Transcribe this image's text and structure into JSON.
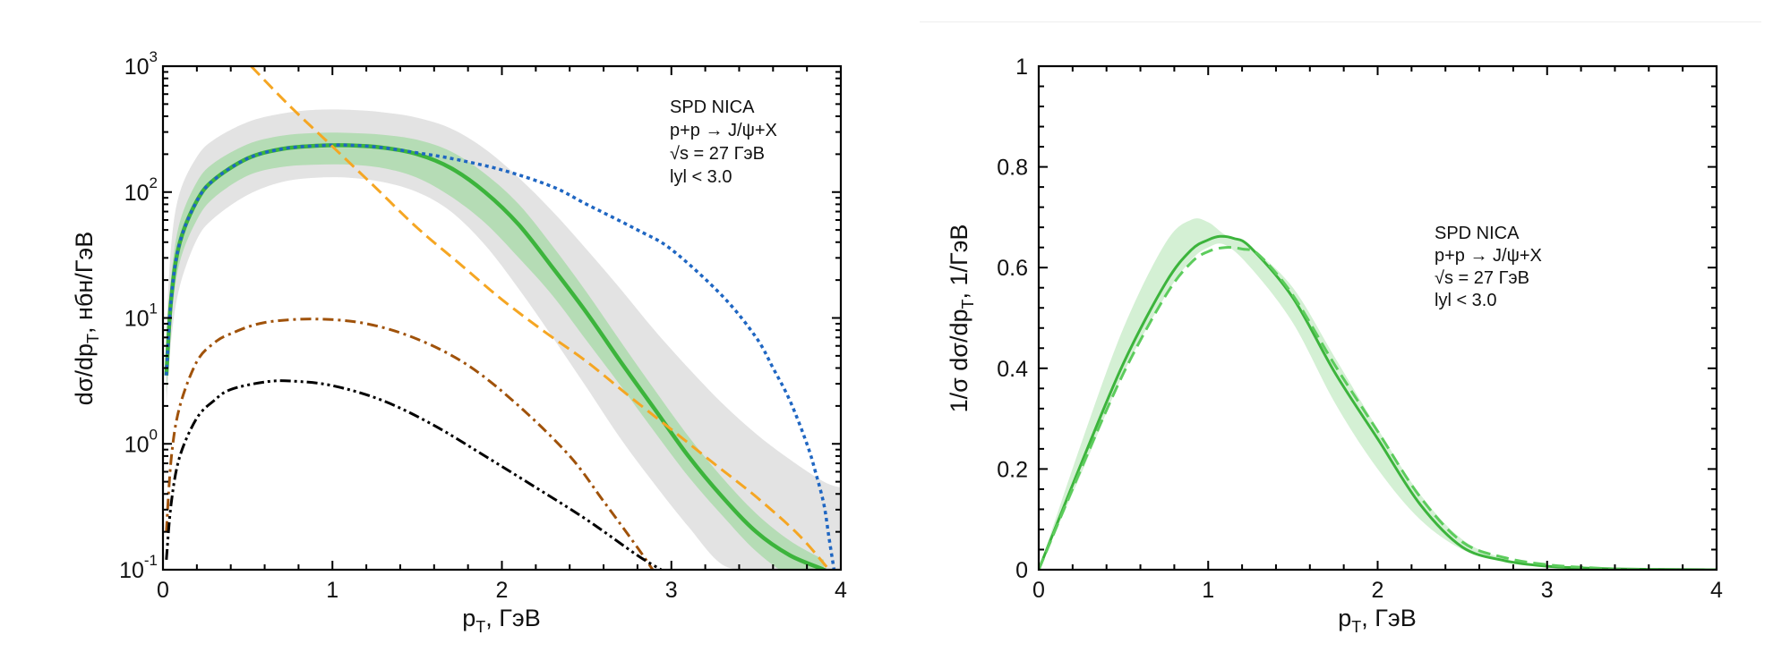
{
  "chart_data": [
    {
      "type": "line",
      "id": "left",
      "title": "",
      "xlabel": "p_T, ГэВ",
      "xlabel_main": "p",
      "xlabel_sub": "T",
      "xlabel_rest": ", ГэВ",
      "ylabel_main": "dσ/dp",
      "ylabel_sub": "T",
      "ylabel_rest": ", нбн/ГэВ",
      "yscale": "log",
      "xlim": [
        0,
        4
      ],
      "ylim": [
        0.1,
        1000
      ],
      "x_ticks": [
        0,
        1,
        2,
        3,
        4
      ],
      "x_tick_labels": [
        "0",
        "1",
        "2",
        "3",
        "4"
      ],
      "y_ticks": [
        {
          "value": 1000,
          "base": "10",
          "exp": "3"
        },
        {
          "value": 100,
          "base": "10",
          "exp": "2"
        },
        {
          "value": 10,
          "base": "10",
          "exp": "1"
        },
        {
          "value": 1,
          "base": "10",
          "exp": "0"
        },
        {
          "value": 0.1,
          "base": "10",
          "exp": "-1"
        }
      ],
      "grid": false,
      "annotation": [
        "SPD NICA",
        "p+p → J/ψ+X",
        "√s = 27 ГэВ",
        "lyl < 3.0"
      ],
      "annotation_position": "top-right",
      "bands": [
        {
          "name": "total-uncertainty-grey",
          "color": "#e3e3e3",
          "x": [
            0.02,
            0.05,
            0.1,
            0.2,
            0.3,
            0.5,
            0.7,
            0.9,
            1.1,
            1.3,
            1.5,
            1.7,
            1.9,
            2.1,
            2.3,
            2.5,
            2.7,
            2.9,
            3.1,
            3.3,
            3.5,
            3.7,
            3.9,
            4.0
          ],
          "upper": [
            8,
            40,
            100,
            190,
            260,
            360,
            420,
            450,
            450,
            430,
            390,
            320,
            220,
            130,
            70,
            35,
            17,
            8,
            4,
            2.1,
            1.2,
            0.75,
            0.5,
            0.45
          ],
          "lower": [
            2,
            7,
            18,
            42,
            62,
            95,
            120,
            130,
            130,
            120,
            100,
            70,
            38,
            17,
            7,
            2.8,
            1.1,
            0.48,
            0.22,
            0.11,
            0.1,
            0.1,
            0.1,
            0.1
          ]
        },
        {
          "name": "scale-uncertainty-green",
          "color": "#b5dcb5",
          "x": [
            0.02,
            0.05,
            0.1,
            0.2,
            0.3,
            0.5,
            0.7,
            0.9,
            1.1,
            1.3,
            1.5,
            1.7,
            1.9,
            2.1,
            2.3,
            2.5,
            2.7,
            2.9,
            3.1,
            3.3,
            3.5,
            3.7,
            3.9
          ],
          "upper": [
            5,
            22,
            58,
            120,
            170,
            240,
            280,
            295,
            295,
            285,
            260,
            210,
            140,
            80,
            37,
            16,
            6.5,
            2.7,
            1.15,
            0.54,
            0.28,
            0.17,
            0.12
          ],
          "lower": [
            2.5,
            10,
            28,
            60,
            90,
            135,
            158,
            165,
            165,
            155,
            130,
            92,
            57,
            30,
            15,
            6.6,
            2.9,
            1.25,
            0.55,
            0.27,
            0.14,
            0.09,
            0.08
          ]
        }
      ],
      "series": [
        {
          "name": "total",
          "style": "solid",
          "color": "#3cb43c",
          "x": [
            0.02,
            0.05,
            0.1,
            0.2,
            0.3,
            0.5,
            0.7,
            0.9,
            1.1,
            1.3,
            1.5,
            1.7,
            1.9,
            2.1,
            2.3,
            2.5,
            2.7,
            2.9,
            3.1,
            3.3,
            3.5,
            3.7,
            3.9,
            3.95
          ],
          "y": [
            3.5,
            15,
            40,
            85,
            125,
            185,
            220,
            233,
            235,
            225,
            200,
            155,
            100,
            55,
            25,
            11,
            4.5,
            1.9,
            0.8,
            0.38,
            0.2,
            0.13,
            0.1,
            0.09
          ]
        },
        {
          "name": "blue-dotted",
          "style": "dotted",
          "color": "#1f66c2",
          "x": [
            0.02,
            0.05,
            0.1,
            0.2,
            0.3,
            0.5,
            0.7,
            0.9,
            1.1,
            1.3,
            1.5,
            1.7,
            2.0,
            2.3,
            2.5,
            2.8,
            3.0,
            3.3,
            3.5,
            3.6,
            3.7,
            3.8,
            3.85,
            3.9,
            3.93,
            3.96
          ],
          "y": [
            3.5,
            15,
            40,
            85,
            125,
            185,
            220,
            233,
            236,
            225,
            205,
            185,
            150,
            110,
            80,
            50,
            35,
            15,
            7,
            4,
            2.2,
            1.0,
            0.6,
            0.33,
            0.18,
            0.1
          ]
        },
        {
          "name": "orange-dashed",
          "style": "dashed",
          "color": "#f5a623",
          "x": [
            0.52,
            0.75,
            1.0,
            1.25,
            1.5,
            1.75,
            2.0,
            2.25,
            2.5,
            2.75,
            3.0,
            3.25,
            3.5,
            3.75,
            3.93
          ],
          "y": [
            1000,
            480,
            230,
            110,
            52,
            27,
            14,
            7.8,
            4.5,
            2.4,
            1.3,
            0.7,
            0.38,
            0.19,
            0.1
          ]
        },
        {
          "name": "brown-dash-dot",
          "style": "dashdot",
          "color": "#a0520a",
          "x": [
            0.02,
            0.05,
            0.1,
            0.2,
            0.3,
            0.4,
            0.6,
            0.9,
            1.2,
            1.5,
            1.8,
            2.1,
            2.4,
            2.6,
            2.8,
            2.89
          ],
          "y": [
            0.2,
            0.8,
            2.0,
            4.5,
            6.3,
            7.5,
            9.2,
            9.8,
            9.0,
            6.8,
            4.2,
            2.0,
            0.8,
            0.35,
            0.15,
            0.1
          ]
        },
        {
          "name": "black-dash-dot-dot",
          "style": "dashdotdot",
          "color": "#000000",
          "x": [
            0.02,
            0.05,
            0.1,
            0.2,
            0.3,
            0.4,
            0.6,
            0.76,
            1.0,
            1.3,
            1.6,
            1.9,
            2.2,
            2.5,
            2.8,
            2.94
          ],
          "y": [
            0.12,
            0.35,
            0.8,
            1.6,
            2.2,
            2.7,
            3.1,
            3.15,
            2.9,
            2.2,
            1.4,
            0.8,
            0.45,
            0.25,
            0.13,
            0.1
          ]
        }
      ]
    },
    {
      "type": "line",
      "id": "right",
      "title": "",
      "xlabel": "p_T, ГэВ",
      "xlabel_main": "p",
      "xlabel_sub": "T",
      "xlabel_rest": ", ГэВ",
      "ylabel_main": "1/σ dσ/dp",
      "ylabel_sub": "T",
      "ylabel_rest": ", 1/ГэВ",
      "yscale": "linear",
      "xlim": [
        0,
        4
      ],
      "ylim": [
        0,
        1
      ],
      "x_ticks": [
        0,
        1,
        2,
        3,
        4
      ],
      "x_tick_labels": [
        "0",
        "1",
        "2",
        "3",
        "4"
      ],
      "y_ticks": [
        0,
        0.2,
        0.4,
        0.6,
        0.8,
        1
      ],
      "y_tick_labels": [
        "0",
        "0.2",
        "0.4",
        "0.6",
        "0.8",
        "1"
      ],
      "grid": false,
      "annotation": [
        "SPD NICA",
        "p+p → J/ψ+X",
        "√s = 27 ГэВ",
        "lyl < 3.0"
      ],
      "annotation_position": "center-right",
      "bands": [
        {
          "name": "normalized-uncertainty",
          "color": "#d4f0d4",
          "x": [
            0,
            0.25,
            0.5,
            0.75,
            0.9,
            1.0,
            1.1,
            1.25,
            1.5,
            1.75,
            2.0,
            2.25,
            2.5,
            2.75,
            3.0,
            3.5,
            4.0
          ],
          "upper": [
            0,
            0.25,
            0.48,
            0.65,
            0.695,
            0.69,
            0.665,
            0.64,
            0.56,
            0.42,
            0.28,
            0.15,
            0.06,
            0.022,
            0.009,
            0.002,
            0
          ],
          "lower": [
            0,
            0.19,
            0.39,
            0.545,
            0.615,
            0.64,
            0.645,
            0.6,
            0.49,
            0.33,
            0.2,
            0.1,
            0.04,
            0.015,
            0.006,
            0.001,
            0
          ]
        }
      ],
      "series": [
        {
          "name": "normalized-solid",
          "style": "solid",
          "color": "#3cb43c",
          "x": [
            0,
            0.25,
            0.5,
            0.75,
            0.9,
            1.0,
            1.07,
            1.15,
            1.25,
            1.5,
            1.75,
            2.0,
            2.25,
            2.5,
            2.75,
            3.0,
            3.25,
            3.5,
            4.0
          ],
          "y": [
            0,
            0.21,
            0.41,
            0.57,
            0.635,
            0.655,
            0.662,
            0.658,
            0.64,
            0.54,
            0.39,
            0.26,
            0.13,
            0.045,
            0.018,
            0.007,
            0.003,
            0.001,
            0
          ]
        },
        {
          "name": "normalized-dashed",
          "style": "dashed",
          "color": "#5ccc5c",
          "x": [
            0,
            0.25,
            0.5,
            0.75,
            0.9,
            1.0,
            1.1,
            1.2,
            1.3,
            1.5,
            1.75,
            2.0,
            2.25,
            2.5,
            2.75,
            3.0,
            3.25,
            3.5,
            4.0
          ],
          "y": [
            0,
            0.2,
            0.39,
            0.545,
            0.61,
            0.632,
            0.64,
            0.637,
            0.625,
            0.545,
            0.405,
            0.275,
            0.145,
            0.055,
            0.024,
            0.01,
            0.004,
            0.001,
            0
          ]
        }
      ]
    }
  ]
}
